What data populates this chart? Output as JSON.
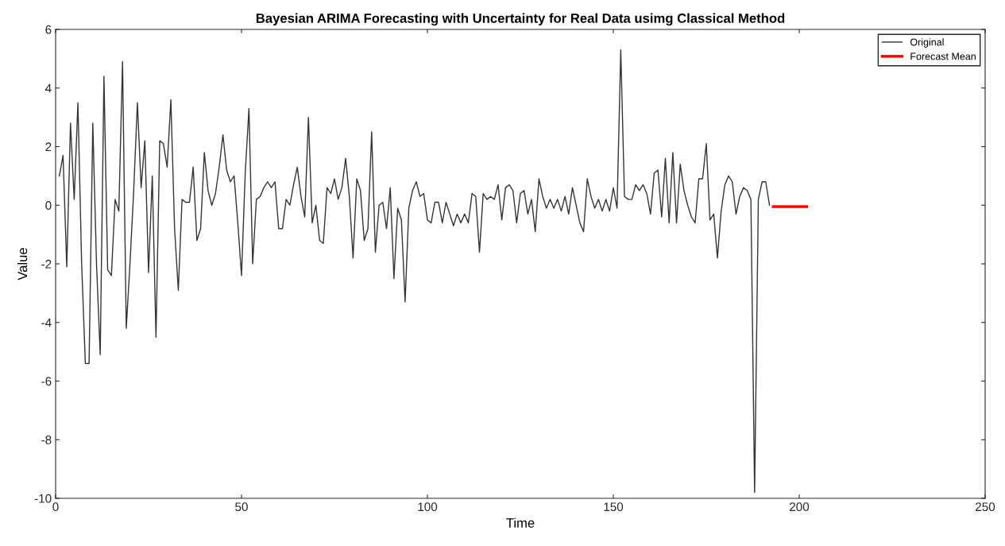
{
  "chart_data": {
    "type": "line",
    "title": "Bayesian ARIMA Forecasting with Uncertainty for Real Data usimg Classical Method",
    "xlabel": "Time",
    "ylabel": "Value",
    "xlim": [
      0,
      250
    ],
    "xticks": [
      0,
      50,
      100,
      150,
      200,
      250
    ],
    "ylim": [
      -10,
      6
    ],
    "yticks": [
      -10,
      -8,
      -6,
      -4,
      -2,
      0,
      2,
      4,
      6
    ],
    "grid": false,
    "legend": "top right",
    "marker": "none",
    "line_style": "solid",
    "series": [
      {
        "name": "Original",
        "color": "#333333",
        "x": [
          1,
          2,
          3,
          4,
          5,
          6,
          7,
          8,
          9,
          10,
          11,
          12,
          13,
          14,
          15,
          16,
          17,
          18,
          19,
          20,
          21,
          22,
          23,
          24,
          25,
          26,
          27,
          28,
          29,
          30,
          31,
          32,
          33,
          34,
          35,
          36,
          37,
          38,
          39,
          40,
          41,
          42,
          43,
          44,
          45,
          46,
          47,
          48,
          49,
          50,
          51,
          52,
          53,
          54,
          55,
          56,
          57,
          58,
          59,
          60,
          61,
          62,
          63,
          64,
          65,
          66,
          67,
          68,
          69,
          70,
          71,
          72,
          73,
          74,
          75,
          76,
          77,
          78,
          79,
          80,
          81,
          82,
          83,
          84,
          85,
          86,
          87,
          88,
          89,
          90,
          91,
          92,
          93,
          94,
          95,
          96,
          97,
          98,
          99,
          100,
          101,
          102,
          103,
          104,
          105,
          106,
          107,
          108,
          109,
          110,
          111,
          112,
          113,
          114,
          115,
          116,
          117,
          118,
          119,
          120,
          121,
          122,
          123,
          124,
          125,
          126,
          127,
          128,
          129,
          130,
          131,
          132,
          133,
          134,
          135,
          136,
          137,
          138,
          139,
          140,
          141,
          142,
          143,
          144,
          145,
          146,
          147,
          148,
          149,
          150,
          151,
          152,
          153,
          154,
          155,
          156,
          157,
          158,
          159,
          160,
          161,
          162,
          163,
          164,
          165,
          166,
          167,
          168,
          169,
          170,
          171,
          172,
          173,
          174,
          175,
          176,
          177,
          178,
          179,
          180,
          181,
          182,
          183,
          184,
          185,
          186,
          187,
          188,
          189,
          190,
          191,
          192
        ],
        "values": [
          1.0,
          1.7,
          -2.1,
          2.8,
          0.2,
          3.5,
          -2.0,
          -5.4,
          -5.4,
          2.8,
          -2.0,
          -5.1,
          4.4,
          -2.2,
          -2.4,
          0.2,
          -0.2,
          4.9,
          -4.2,
          -2.0,
          0.5,
          3.5,
          0.6,
          2.2,
          -2.3,
          1.0,
          -4.5,
          2.2,
          2.1,
          1.3,
          3.6,
          -0.8,
          -2.9,
          0.2,
          0.1,
          0.1,
          1.3,
          -1.2,
          -0.8,
          1.8,
          0.5,
          0.0,
          0.4,
          1.3,
          2.4,
          1.2,
          0.8,
          1.0,
          -0.6,
          -2.4,
          1.1,
          3.3,
          -2.0,
          0.2,
          0.3,
          0.6,
          0.8,
          0.6,
          0.8,
          -0.8,
          -0.8,
          0.2,
          0.0,
          0.7,
          1.3,
          0.3,
          -0.4,
          3.0,
          -0.6,
          0.0,
          -1.2,
          -1.3,
          0.6,
          0.4,
          0.9,
          0.2,
          0.6,
          1.6,
          0.3,
          -1.8,
          0.9,
          0.5,
          -1.2,
          -0.8,
          2.5,
          -1.6,
          0.0,
          0.1,
          -0.8,
          0.6,
          -2.5,
          -0.1,
          -0.5,
          -3.3,
          -0.1,
          0.5,
          0.8,
          0.3,
          0.4,
          -0.5,
          -0.6,
          0.1,
          0.1,
          -0.6,
          0.1,
          -0.3,
          -0.7,
          -0.3,
          -0.6,
          -0.3,
          -0.6,
          0.4,
          0.3,
          -1.6,
          0.4,
          0.2,
          0.3,
          0.2,
          0.7,
          -0.5,
          0.6,
          0.7,
          0.5,
          -0.6,
          0.4,
          0.5,
          -0.3,
          0.2,
          -0.9,
          0.9,
          0.3,
          -0.1,
          0.2,
          -0.1,
          0.2,
          -0.2,
          0.3,
          -0.3,
          0.6,
          0.0,
          -0.6,
          -0.9,
          0.9,
          0.3,
          -0.1,
          0.2,
          -0.2,
          0.2,
          -0.2,
          0.6,
          -0.1,
          5.3,
          0.3,
          0.2,
          0.2,
          0.7,
          0.5,
          0.7,
          0.4,
          -0.3,
          1.1,
          1.2,
          -0.4,
          1.6,
          -0.6,
          1.8,
          -0.6,
          1.4,
          0.5,
          0.0,
          -0.4,
          -0.6,
          0.9,
          0.9,
          2.1,
          -0.5,
          -0.3,
          -1.8,
          -0.2,
          0.7,
          1.0,
          0.8,
          -0.3,
          0.3,
          0.6,
          0.5,
          0.2,
          -9.8,
          0.2,
          0.8,
          0.8,
          0.0
        ]
      },
      {
        "name": "Forecast Mean",
        "color": "#ff0000",
        "x": [
          193,
          194,
          195,
          196,
          197,
          198,
          199,
          200,
          201,
          202
        ],
        "values": [
          -0.05,
          -0.05,
          -0.05,
          -0.05,
          -0.05,
          -0.05,
          -0.05,
          -0.05,
          -0.05,
          -0.05
        ]
      }
    ]
  }
}
